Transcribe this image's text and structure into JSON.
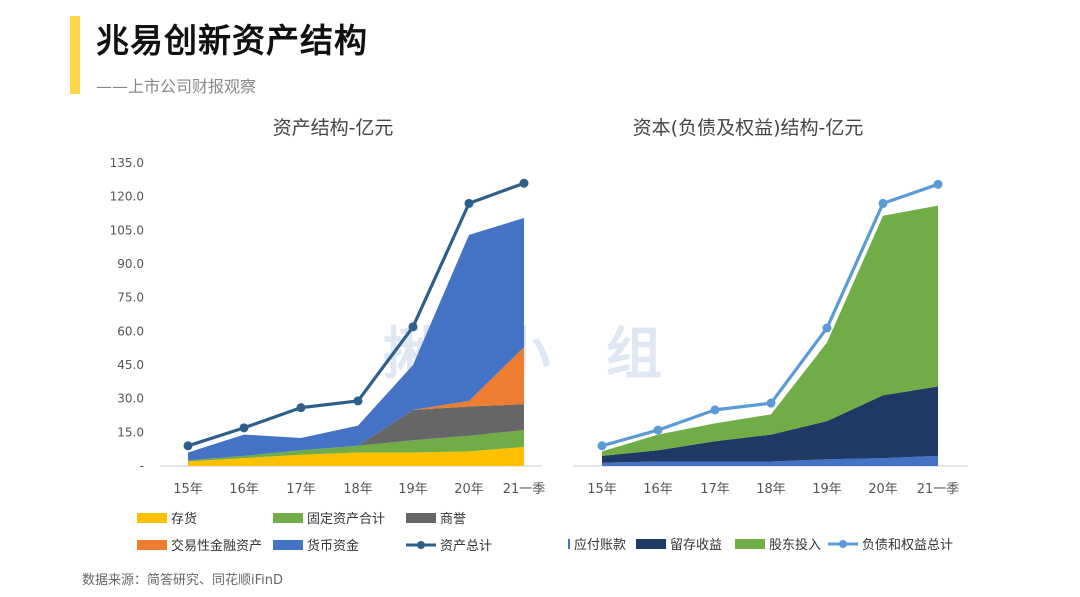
{
  "header": {
    "title": "兆易创新资产结构",
    "subtitle": "——上市公司财报观察"
  },
  "footer": {
    "source": "数据来源：简答研究、同花顺iFinD"
  },
  "watermark": "揪  小 组",
  "chart_data": [
    {
      "type": "area",
      "title": "资产结构-亿元",
      "categories": [
        "15年",
        "16年",
        "17年",
        "18年",
        "19年",
        "20年",
        "21一季"
      ],
      "ylim": [
        0,
        135
      ],
      "yticks": [
        "-",
        "15.0",
        "30.0",
        "45.0",
        "60.0",
        "75.0",
        "90.0",
        "105.0",
        "120.0",
        "135.0"
      ],
      "stacked": true,
      "series": [
        {
          "name": "存货",
          "color": "#ffc000",
          "values": [
            2,
            3.5,
            5,
            6,
            6,
            6.5,
            8.5
          ]
        },
        {
          "name": "固定资产合计",
          "color": "#70ad47",
          "values": [
            0.5,
            1,
            2,
            3,
            5.5,
            7,
            7.5
          ]
        },
        {
          "name": "商誉",
          "color": "#666666",
          "values": [
            0,
            0,
            0,
            0,
            13.5,
            13,
            11.5
          ]
        },
        {
          "name": "交易性金融资产",
          "color": "#ed7d31",
          "values": [
            0,
            0,
            0,
            0,
            0,
            2.5,
            25.5
          ]
        },
        {
          "name": "货币资金",
          "color": "#4472c4",
          "values": [
            3.5,
            9.5,
            5.5,
            9,
            20,
            74,
            57.5
          ]
        }
      ],
      "line": {
        "name": "资产总计",
        "color": "#2e5f8a",
        "values": [
          9,
          17,
          26,
          29,
          62,
          117,
          126
        ]
      },
      "legend": [
        {
          "name": "存货",
          "kind": "box",
          "color": "#ffc000"
        },
        {
          "name": "固定资产合计",
          "kind": "box",
          "color": "#70ad47"
        },
        {
          "name": "商誉",
          "kind": "box",
          "color": "#666666"
        },
        {
          "name": "交易性金融资产",
          "kind": "box",
          "color": "#ed7d31"
        },
        {
          "name": "货币资金",
          "kind": "box",
          "color": "#4472c4"
        },
        {
          "name": "资产总计",
          "kind": "line",
          "color": "#2e5f8a"
        }
      ]
    },
    {
      "type": "area",
      "title": "资本(负债及权益)结构-亿元",
      "categories": [
        "15年",
        "16年",
        "17年",
        "18年",
        "19年",
        "20年",
        "21一季"
      ],
      "ylim": [
        0,
        135
      ],
      "stacked": true,
      "series": [
        {
          "name": "应付账款",
          "color": "#4472c4",
          "values": [
            1.5,
            2,
            2,
            2,
            3,
            3.5,
            4.5
          ]
        },
        {
          "name": "留存收益",
          "color": "#203864",
          "values": [
            3,
            5,
            9,
            12,
            17,
            28,
            31
          ]
        },
        {
          "name": "股东投入",
          "color": "#70ad47",
          "values": [
            2,
            7,
            8,
            9,
            35,
            80,
            80.5
          ]
        }
      ],
      "line": {
        "name": "负债和权益总计",
        "color": "#5b9bd5",
        "values": [
          9,
          16,
          25,
          28,
          61.5,
          117,
          125.5
        ]
      },
      "legend": [
        {
          "name": "应付账款",
          "kind": "thin",
          "color": "#4472c4"
        },
        {
          "name": "留存收益",
          "kind": "box",
          "color": "#203864"
        },
        {
          "name": "股东投入",
          "kind": "box",
          "color": "#70ad47"
        },
        {
          "name": "负债和权益总计",
          "kind": "line",
          "color": "#5b9bd5"
        }
      ]
    }
  ]
}
